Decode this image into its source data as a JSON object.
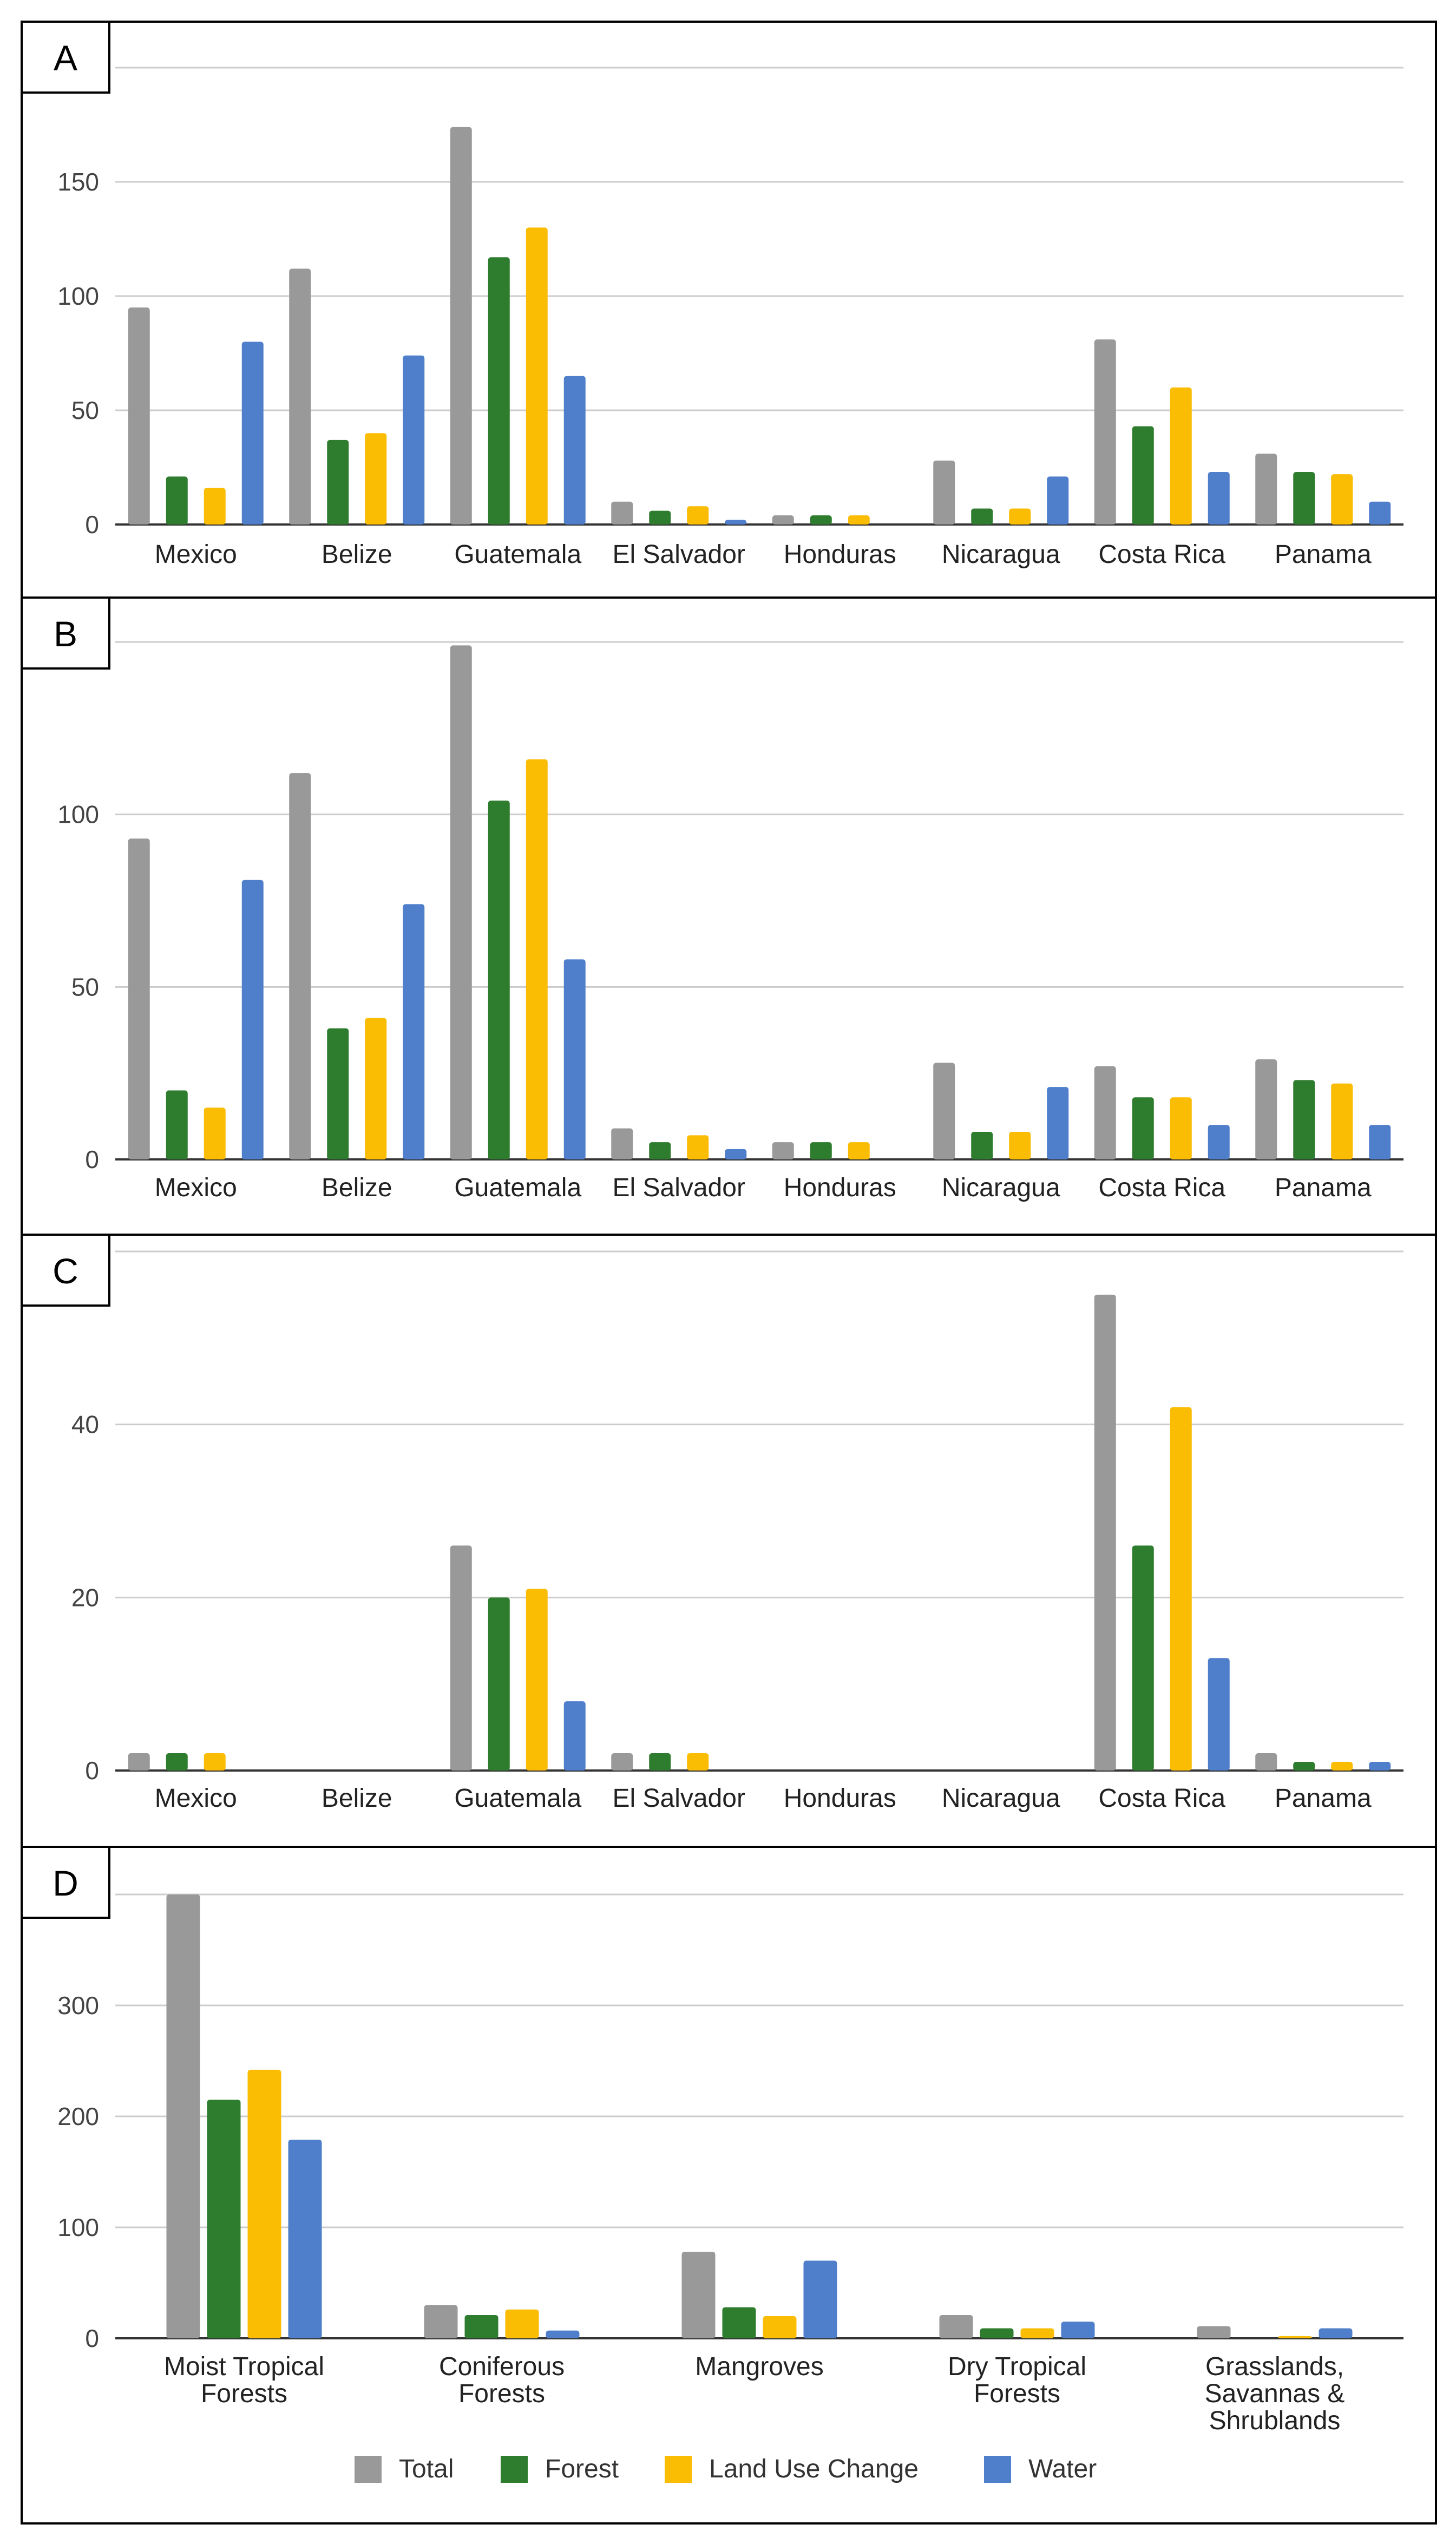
{
  "chart_data": [
    {
      "panel": "A",
      "type": "bar",
      "categories": [
        "Mexico",
        "Belize",
        "Guatemala",
        "El Salvador",
        "Honduras",
        "Nicaragua",
        "Costa Rica",
        "Panama"
      ],
      "series": [
        {
          "name": "Total",
          "color": "#999999",
          "values": [
            95,
            112,
            174,
            10,
            4,
            28,
            81,
            31
          ]
        },
        {
          "name": "Forest",
          "color": "#2e7d2e",
          "values": [
            21,
            37,
            117,
            6,
            4,
            7,
            43,
            23
          ]
        },
        {
          "name": "Land Use Change",
          "color": "#fbbc04",
          "values": [
            16,
            40,
            130,
            8,
            4,
            7,
            60,
            22
          ]
        },
        {
          "name": "Water",
          "color": "#4f7fcb",
          "values": [
            80,
            74,
            65,
            2,
            0,
            21,
            23,
            10
          ]
        }
      ],
      "yticks": [
        0,
        50,
        100,
        150
      ],
      "ylim": [
        0,
        200
      ],
      "grid": true
    },
    {
      "panel": "B",
      "type": "bar",
      "categories": [
        "Mexico",
        "Belize",
        "Guatemala",
        "El Salvador",
        "Honduras",
        "Nicaragua",
        "Costa Rica",
        "Panama"
      ],
      "series": [
        {
          "name": "Total",
          "color": "#999999",
          "values": [
            93,
            112,
            149,
            9,
            5,
            28,
            27,
            29
          ]
        },
        {
          "name": "Forest",
          "color": "#2e7d2e",
          "values": [
            20,
            38,
            104,
            5,
            5,
            8,
            18,
            23
          ]
        },
        {
          "name": "Land Use Change",
          "color": "#fbbc04",
          "values": [
            15,
            41,
            116,
            7,
            5,
            8,
            18,
            22
          ]
        },
        {
          "name": "Water",
          "color": "#4f7fcb",
          "values": [
            81,
            74,
            58,
            3,
            0,
            21,
            10,
            10
          ]
        }
      ],
      "yticks": [
        0,
        50,
        100
      ],
      "ylim": [
        0,
        150
      ],
      "grid": true
    },
    {
      "panel": "C",
      "type": "bar",
      "categories": [
        "Mexico",
        "Belize",
        "Guatemala",
        "El Salvador",
        "Honduras",
        "Nicaragua",
        "Costa Rica",
        "Panama"
      ],
      "series": [
        {
          "name": "Total",
          "color": "#999999",
          "values": [
            2,
            0,
            26,
            2,
            0,
            0,
            55,
            2
          ]
        },
        {
          "name": "Forest",
          "color": "#2e7d2e",
          "values": [
            2,
            0,
            20,
            2,
            0,
            0,
            26,
            1
          ]
        },
        {
          "name": "Land Use Change",
          "color": "#fbbc04",
          "values": [
            2,
            0,
            21,
            2,
            0,
            0,
            42,
            1
          ]
        },
        {
          "name": "Water",
          "color": "#4f7fcb",
          "values": [
            0,
            0,
            8,
            0,
            0,
            0,
            13,
            1
          ]
        }
      ],
      "yticks": [
        0,
        20,
        40
      ],
      "ylim": [
        0,
        60
      ],
      "grid": true
    },
    {
      "panel": "D",
      "type": "bar",
      "categories": [
        "Moist Tropical Forests",
        "Coniferous Forests",
        "Mangroves",
        "Dry Tropical Forests",
        "Grasslands, Savannas & Shrublands"
      ],
      "series": [
        {
          "name": "Total",
          "color": "#999999",
          "values": [
            400,
            30,
            78,
            21,
            11
          ]
        },
        {
          "name": "Forest",
          "color": "#2e7d2e",
          "values": [
            215,
            21,
            28,
            9,
            0
          ]
        },
        {
          "name": "Land Use Change",
          "color": "#fbbc04",
          "values": [
            242,
            26,
            20,
            9,
            2
          ]
        },
        {
          "name": "Water",
          "color": "#4f7fcb",
          "values": [
            179,
            7,
            70,
            15,
            9
          ]
        }
      ],
      "yticks": [
        0,
        100,
        200,
        300
      ],
      "ylim": [
        0,
        400
      ],
      "grid": true,
      "legend": "bottom"
    }
  ],
  "legend": [
    {
      "name": "Total",
      "color": "#999999"
    },
    {
      "name": "Forest",
      "color": "#2e7d2e"
    },
    {
      "name": "Land Use Change",
      "color": "#fbbc04"
    },
    {
      "name": "Water",
      "color": "#4f7fcb"
    }
  ]
}
